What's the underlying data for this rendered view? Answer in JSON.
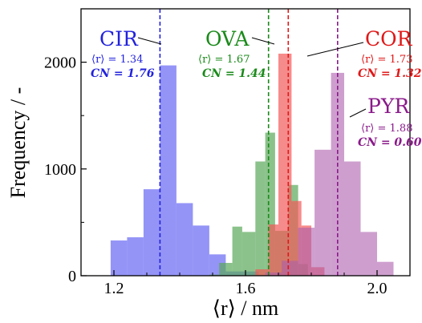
{
  "chart_data": {
    "type": "histogram",
    "xlabel": "⟨r⟩ / nm",
    "ylabel": "Frequency / -",
    "xlim": [
      1.1,
      2.1
    ],
    "ylim": [
      0,
      2500
    ],
    "xticks": [
      1.2,
      1.6,
      2.0
    ],
    "xtick_labels": [
      "1.2",
      "1.6",
      "2.0"
    ],
    "yticks": [
      0,
      1000,
      2000
    ],
    "ytick_labels": [
      "0",
      "1000",
      "2000"
    ],
    "grid": false,
    "series": [
      {
        "name": "CIR",
        "color": "#7070f4",
        "opacity": 0.75,
        "bins": [
          {
            "x0": 1.19,
            "x1": 1.24,
            "y": 330
          },
          {
            "x0": 1.24,
            "x1": 1.29,
            "y": 360
          },
          {
            "x0": 1.29,
            "x1": 1.34,
            "y": 810
          },
          {
            "x0": 1.34,
            "x1": 1.39,
            "y": 1970
          },
          {
            "x0": 1.39,
            "x1": 1.44,
            "y": 680
          },
          {
            "x0": 1.44,
            "x1": 1.49,
            "y": 470
          },
          {
            "x0": 1.49,
            "x1": 1.54,
            "y": 200
          },
          {
            "x0": 1.54,
            "x1": 1.59,
            "y": 40
          },
          {
            "x0": 1.59,
            "x1": 1.64,
            "y": 40
          }
        ],
        "mean_line": 1.34,
        "stat_text": "⟨r⟩ = 1.34",
        "cn_text": "CN = 1.76",
        "text_color": "#2222dd"
      },
      {
        "name": "OVA",
        "color": "#5aa85a",
        "opacity": 0.7,
        "bins": [
          {
            "x0": 1.49,
            "x1": 1.52,
            "y": 10
          },
          {
            "x0": 1.52,
            "x1": 1.56,
            "y": 120
          },
          {
            "x0": 1.56,
            "x1": 1.59,
            "y": 460
          },
          {
            "x0": 1.59,
            "x1": 1.63,
            "y": 410
          },
          {
            "x0": 1.63,
            "x1": 1.66,
            "y": 1070
          },
          {
            "x0": 1.66,
            "x1": 1.69,
            "y": 1340
          },
          {
            "x0": 1.69,
            "x1": 1.73,
            "y": 420
          },
          {
            "x0": 1.73,
            "x1": 1.76,
            "y": 850
          },
          {
            "x0": 1.76,
            "x1": 1.79,
            "y": 110
          }
        ],
        "mean_line": 1.67,
        "stat_text": "⟨r⟩ = 1.67",
        "cn_text": "CN = 1.44",
        "text_color": "#1a8a1a"
      },
      {
        "name": "COR",
        "color": "#f25a5a",
        "opacity": 0.7,
        "bins": [
          {
            "x0": 1.63,
            "x1": 1.67,
            "y": 60
          },
          {
            "x0": 1.67,
            "x1": 1.7,
            "y": 480
          },
          {
            "x0": 1.7,
            "x1": 1.74,
            "y": 2080
          },
          {
            "x0": 1.74,
            "x1": 1.77,
            "y": 700
          },
          {
            "x0": 1.77,
            "x1": 1.8,
            "y": 470
          },
          {
            "x0": 1.8,
            "x1": 1.84,
            "y": 80
          }
        ],
        "mean_line": 1.73,
        "stat_text": "⟨r⟩ = 1.73",
        "cn_text": "CN = 1.32",
        "text_color": "#e01818"
      },
      {
        "name": "PYR",
        "color": "#ad5fad",
        "opacity": 0.6,
        "bins": [
          {
            "x0": 1.66,
            "x1": 1.71,
            "y": 30
          },
          {
            "x0": 1.71,
            "x1": 1.76,
            "y": 140
          },
          {
            "x0": 1.76,
            "x1": 1.81,
            "y": 450
          },
          {
            "x0": 1.81,
            "x1": 1.86,
            "y": 1180
          },
          {
            "x0": 1.86,
            "x1": 1.9,
            "y": 1900
          },
          {
            "x0": 1.9,
            "x1": 1.95,
            "y": 1070
          },
          {
            "x0": 1.95,
            "x1": 2.0,
            "y": 410
          },
          {
            "x0": 2.0,
            "x1": 2.05,
            "y": 130
          }
        ],
        "mean_line": 1.88,
        "stat_text": "⟨r⟩ = 1.88",
        "cn_text": "CN = 0.60",
        "text_color": "#8a1a8a"
      }
    ]
  }
}
